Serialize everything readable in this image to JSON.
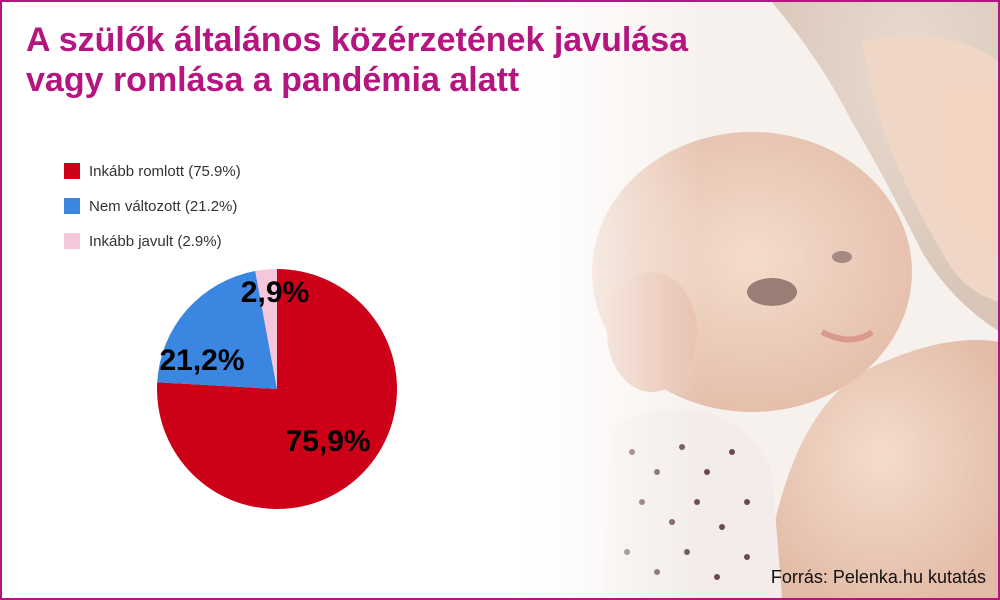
{
  "header": {
    "title_line1": "A szülők általános közérzetének javulása",
    "title_line2": "vagy romlása a pandémia alatt"
  },
  "legend": {
    "items": [
      {
        "label": "Inkább romlott (75.9%)",
        "color": "#cc0017"
      },
      {
        "label": "Nem változott (21.2%)",
        "color": "#3a86e0"
      },
      {
        "label": "Inkább javult (2.9%)",
        "color": "#f6c7dc"
      }
    ]
  },
  "chart_data": {
    "type": "pie",
    "categories": [
      "Inkább romlott",
      "Nem változott",
      "Inkább javult"
    ],
    "values": [
      75.9,
      21.2,
      2.9
    ],
    "data_labels": [
      "75,9%",
      "21,2%",
      "2,9%"
    ],
    "colors": [
      "#cc0017",
      "#3a86e0",
      "#f6c7dc"
    ],
    "title": "",
    "legend_position": "top-left"
  },
  "footer": {
    "source": "Forrás: Pelenka.hu kutatás"
  },
  "colors": {
    "accent": "#b5157f",
    "border": "#b5157f"
  },
  "photo": {
    "icon": "mother-and-baby-photo"
  }
}
